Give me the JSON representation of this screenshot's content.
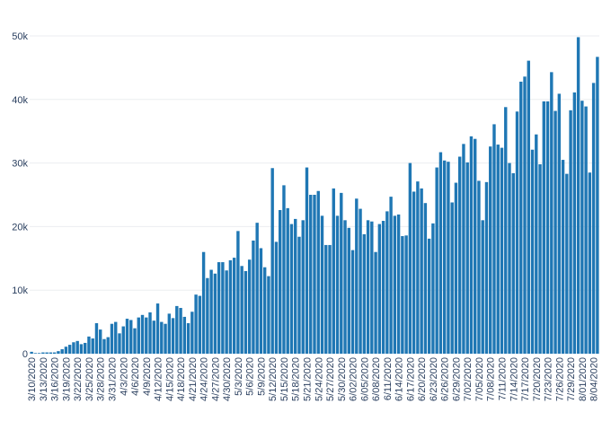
{
  "chart_data": {
    "type": "bar",
    "title": "",
    "xlabel": "",
    "ylabel": "",
    "ylim": [
      0,
      50000
    ],
    "yticks": [
      0,
      10000,
      20000,
      30000,
      40000,
      50000
    ],
    "ytick_labels": [
      "0",
      "10k",
      "20k",
      "30k",
      "40k",
      "50k"
    ],
    "grid": true,
    "bar_color": "#1f77b4",
    "x_tick_labels": [
      "3/10/2020",
      "3/13/2020",
      "3/16/2020",
      "3/19/2020",
      "3/22/2020",
      "3/25/2020",
      "3/28/2020",
      "3/31/2020",
      "4/3/2020",
      "4/6/2020",
      "4/9/2020",
      "4/12/2020",
      "4/15/2020",
      "4/18/2020",
      "4/21/2020",
      "4/24/2020",
      "4/27/2020",
      "4/30/2020",
      "5/3/2020",
      "5/6/2020",
      "5/9/2020",
      "5/12/2020",
      "5/15/2020",
      "5/18/2020",
      "5/21/2020",
      "5/24/2020",
      "5/27/2020",
      "5/30/2020",
      "6/02/2020",
      "6/05/2020",
      "6/08/2020",
      "6/11/2020",
      "6/14/2020",
      "6/17/2020",
      "6/20/2020",
      "6/23/2020",
      "6/26/2020",
      "6/29/2020",
      "7/02/2020",
      "7/05/2020",
      "7/08/2020",
      "7/11/2020",
      "7/14/2020",
      "7/17/2020",
      "7/20/2020",
      "7/23/2020",
      "7/26/2020",
      "7/29/2020",
      "8/01/2020",
      "8/04/2020"
    ],
    "x_tick_every": 3,
    "values": [
      300,
      100,
      100,
      200,
      200,
      200,
      200,
      400,
      700,
      1100,
      1400,
      1800,
      2000,
      1500,
      1700,
      2700,
      2400,
      4800,
      3800,
      2300,
      2600,
      4700,
      5000,
      3200,
      4300,
      5500,
      5300,
      4000,
      5700,
      6100,
      5700,
      6500,
      5200,
      7900,
      5000,
      4700,
      6300,
      5600,
      7500,
      7200,
      5800,
      4800,
      6600,
      9300,
      9100,
      16000,
      11900,
      13200,
      12600,
      14400,
      14400,
      13100,
      14700,
      15100,
      19300,
      13800,
      13000,
      14800,
      17800,
      20600,
      16600,
      13600,
      12200,
      29200,
      17600,
      22600,
      26500,
      22900,
      20400,
      21200,
      18400,
      21000,
      29300,
      25000,
      25000,
      25600,
      21700,
      17100,
      17100,
      26000,
      21700,
      25300,
      21000,
      19800,
      16300,
      24400,
      22800,
      18800,
      21000,
      20800,
      16000,
      20400,
      20900,
      22400,
      24700,
      21700,
      21900,
      18500,
      18600,
      30000,
      25500,
      27100,
      26000,
      23700,
      18100,
      20500,
      29300,
      31700,
      30400,
      30200,
      23800,
      26900,
      31000,
      33000,
      30100,
      34200,
      33800,
      27200,
      21000,
      27000,
      32600,
      36100,
      32900,
      32400,
      38800,
      30000,
      28400,
      38100,
      42800,
      43600,
      46100,
      32100,
      34500,
      29800,
      39700,
      39700,
      44300,
      38200,
      40900,
      30500,
      28300,
      38300,
      41100,
      49800,
      39800,
      38900,
      28500,
      42600,
      46700
    ]
  }
}
